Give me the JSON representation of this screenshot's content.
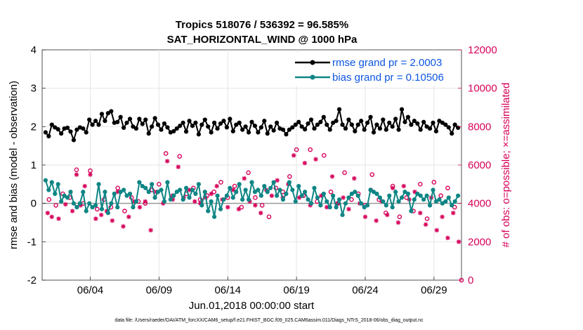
{
  "chart_data": {
    "type": "line",
    "title": "Tropics 518076 / 536392 = 96.585%",
    "subtitle": "SAT_HORIZONTAL_WIND @ 1000 hPa",
    "xlabel": "Jun.01,2018 00:00:00 start",
    "ylabel": "rmse and bias (model - observation)",
    "ylabel_right": "# of obs: o=possible; ×=assimilated",
    "footnote": "data file: /Users/raeder/DAI/ATM_forcXX/CAM6_setup/f.e21.FHIST_BGC.f09_025.CAM6assim.011/Diags_NTrS_2018-06/obs_diag_output.nc",
    "xlim": [
      0.5,
      31
    ],
    "ylim": [
      -2,
      4
    ],
    "ylim_right": [
      0,
      12000
    ],
    "x_ticks": [
      {
        "x": 4,
        "label": "06/04"
      },
      {
        "x": 9,
        "label": "06/09"
      },
      {
        "x": 14,
        "label": "06/14"
      },
      {
        "x": 19,
        "label": "06/19"
      },
      {
        "x": 24,
        "label": "06/24"
      },
      {
        "x": 29,
        "label": "06/29"
      }
    ],
    "y_ticks": [
      "-2",
      "-1",
      "0",
      "1",
      "2",
      "3",
      "4"
    ],
    "y_ticks_right": [
      "0",
      "2000",
      "4000",
      "6000",
      "8000",
      "10000",
      "12000"
    ],
    "zero_line": 0,
    "legend": [
      {
        "name": "rmse grand pr = 2.0003",
        "color": "#000000"
      },
      {
        "name": "bias grand pr = 0.10506",
        "color": "#0e8585"
      }
    ],
    "series": [
      {
        "name": "rmse",
        "color": "#000000",
        "values": [
          1.85,
          1.75,
          2.05,
          1.98,
          1.93,
          1.82,
          1.95,
          1.97,
          1.87,
          1.65,
          1.92,
          1.98,
          1.95,
          1.85,
          2.18,
          2.05,
          2.15,
          2.05,
          2.33,
          2.15,
          2.35,
          2.4,
          2.1,
          2.12,
          2.25,
          1.97,
          2.1,
          2.2,
          2.0,
          1.95,
          2.2,
          2.07,
          2.18,
          1.82,
          2.0,
          2.22,
          2.05,
          1.92,
          2.08,
          1.98,
          1.85,
          1.88,
          1.95,
          2.02,
          2.1,
          1.87,
          2.15,
          2.02,
          2.1,
          1.8,
          2.05,
          2.18,
          2.0,
          1.85,
          2.1,
          1.95,
          2.08,
          2.15,
          1.98,
          2.2,
          1.88,
          2.05,
          2.1,
          1.92,
          2.0,
          1.85,
          2.12,
          2.02,
          1.85,
          1.98,
          2.15,
          1.82,
          2.0,
          1.9,
          2.1,
          1.95,
          1.92,
          1.8,
          1.92,
          1.98,
          2.05,
          2.12,
          2.0,
          1.93,
          2.08,
          2.18,
          1.95,
          2.05,
          2.12,
          2.25,
          2.05,
          1.92,
          2.1,
          2.15,
          2.45,
          2.05,
          1.95,
          2.18,
          2.05,
          1.88,
          2.05,
          2.15,
          1.92,
          2.1,
          2.25,
          1.85,
          2.05,
          1.95,
          2.18,
          1.92,
          2.1,
          2.0,
          2.2,
          1.92,
          2.45,
          2.12,
          2.25,
          2.05,
          2.15,
          2.08,
          1.92,
          2.12,
          2.0,
          1.95,
          2.1,
          1.88,
          2.15,
          2.1,
          2.05,
          1.98,
          1.82,
          2.05,
          1.97
        ]
      },
      {
        "name": "bias",
        "color": "#0e8585",
        "values": [
          0.6,
          0.35,
          0.55,
          0.25,
          0.5,
          0.05,
          0.2,
          0.15,
          0.3,
          0.0,
          -0.1,
          0.0,
          0.3,
          -0.2,
          0.0,
          -0.1,
          -0.05,
          0.5,
          -0.15,
          0.3,
          -0.25,
          0.0,
          0.25,
          -0.1,
          0.3,
          0.35,
          0.2,
          0.25,
          -0.1,
          0.05,
          0.55,
          0.45,
          0.4,
          0.3,
          0.5,
          0.15,
          0.3,
          0.35,
          0.05,
          0.55,
          0.1,
          0.2,
          0.3,
          0.35,
          0.1,
          0.4,
          0.15,
          0.35,
          0.25,
          0.5,
          -0.05,
          0.3,
          -0.2,
          0.05,
          -0.35,
          0.2,
          -0.15,
          0.1,
          0.2,
          0.4,
          0.15,
          0.3,
          0.5,
          0.1,
          0.35,
          0.1,
          0.55,
          0.3,
          0.35,
          0.2,
          0.45,
          0.3,
          0.4,
          0.55,
          0.2,
          0.35,
          0.1,
          0.25,
          0.55,
          0.35,
          0.05,
          0.45,
          0.2,
          0.3,
          0.1,
          0.0,
          0.4,
          0.15,
          -0.05,
          0.25,
          0.05,
          -0.1,
          0.2,
          -0.1,
          0.1,
          -0.3,
          0.0,
          0.15,
          0.25,
          0.3,
          0.2,
          0.0,
          -0.1,
          -0.05,
          0.35,
          0.3,
          0.25,
          0.15,
          0.05,
          -0.05,
          0.2,
          -0.1,
          0.3,
          0.05,
          0.15,
          0.3,
          0.25,
          -0.2,
          0.1,
          0.25,
          0.2,
          0.1,
          0.2,
          -0.05,
          0.35,
          0.05,
          0.1,
          0.0,
          0.05,
          0.15,
          -0.05,
          0.05,
          0.2
        ]
      }
    ],
    "obs_possible": [
      {
        "x": 1.0,
        "y": 4200
      },
      {
        "x": 1.5,
        "y": 3900
      },
      {
        "x": 2.0,
        "y": 4500
      },
      {
        "x": 2.5,
        "y": 4300
      },
      {
        "x": 3.0,
        "y": 5750
      },
      {
        "x": 3.5,
        "y": 4000
      },
      {
        "x": 4.0,
        "y": 5700
      },
      {
        "x": 4.5,
        "y": 3700
      },
      {
        "x": 5.0,
        "y": 4200
      },
      {
        "x": 5.5,
        "y": 3800
      },
      {
        "x": 6.0,
        "y": 4800
      },
      {
        "x": 6.5,
        "y": 3600
      },
      {
        "x": 7.0,
        "y": 4300
      },
      {
        "x": 7.5,
        "y": 4100
      },
      {
        "x": 8.0,
        "y": 4000
      },
      {
        "x": 8.5,
        "y": 4700
      },
      {
        "x": 9.0,
        "y": 5000
      },
      {
        "x": 9.5,
        "y": 6600
      },
      {
        "x": 10.0,
        "y": 4400
      },
      {
        "x": 10.5,
        "y": 6450
      },
      {
        "x": 11.0,
        "y": 4500
      },
      {
        "x": 11.5,
        "y": 4800
      },
      {
        "x": 12.0,
        "y": 4200
      },
      {
        "x": 12.5,
        "y": 4400
      },
      {
        "x": 13.0,
        "y": 4600
      },
      {
        "x": 13.5,
        "y": 5100
      },
      {
        "x": 14.0,
        "y": 4300
      },
      {
        "x": 14.5,
        "y": 4900
      },
      {
        "x": 15.0,
        "y": 3800
      },
      {
        "x": 15.5,
        "y": 5600
      },
      {
        "x": 16.0,
        "y": 4300
      },
      {
        "x": 16.5,
        "y": 3900
      },
      {
        "x": 17.0,
        "y": 3300
      },
      {
        "x": 17.5,
        "y": 4800
      },
      {
        "x": 18.0,
        "y": 4600
      },
      {
        "x": 18.5,
        "y": 5400
      },
      {
        "x": 19.0,
        "y": 6800
      },
      {
        "x": 19.5,
        "y": 4400
      },
      {
        "x": 20.0,
        "y": 6800
      },
      {
        "x": 20.5,
        "y": 4100
      },
      {
        "x": 21.0,
        "y": 6500
      },
      {
        "x": 21.5,
        "y": 4600
      },
      {
        "x": 22.0,
        "y": 4000
      },
      {
        "x": 22.5,
        "y": 5600
      },
      {
        "x": 23.0,
        "y": 4200
      },
      {
        "x": 23.5,
        "y": 4500
      },
      {
        "x": 24.0,
        "y": 3900
      },
      {
        "x": 24.5,
        "y": 5500
      },
      {
        "x": 25.0,
        "y": 4200
      },
      {
        "x": 25.5,
        "y": 3500
      },
      {
        "x": 26.0,
        "y": 4900
      },
      {
        "x": 26.5,
        "y": 3300
      },
      {
        "x": 27.0,
        "y": 4300
      },
      {
        "x": 27.5,
        "y": 3600
      },
      {
        "x": 28.0,
        "y": 5000
      },
      {
        "x": 28.5,
        "y": 3200
      },
      {
        "x": 29.0,
        "y": 5100
      },
      {
        "x": 29.5,
        "y": 4400
      },
      {
        "x": 30.0,
        "y": 4800
      },
      {
        "x": 30.5,
        "y": 3800
      },
      {
        "x": 31.0,
        "y": 0
      }
    ],
    "obs_assimilated": [
      {
        "x": 0.9,
        "y": 3500
      },
      {
        "x": 1.2,
        "y": 3300
      },
      {
        "x": 1.7,
        "y": 3200
      },
      {
        "x": 2.2,
        "y": 3950
      },
      {
        "x": 2.7,
        "y": 3600
      },
      {
        "x": 3.0,
        "y": 5500
      },
      {
        "x": 3.3,
        "y": 3900
      },
      {
        "x": 3.6,
        "y": 4900
      },
      {
        "x": 4.0,
        "y": 5500
      },
      {
        "x": 4.4,
        "y": 3200
      },
      {
        "x": 4.8,
        "y": 3400
      },
      {
        "x": 5.2,
        "y": 3600
      },
      {
        "x": 5.6,
        "y": 3100
      },
      {
        "x": 6.0,
        "y": 4600
      },
      {
        "x": 6.4,
        "y": 2800
      },
      {
        "x": 6.8,
        "y": 3300
      },
      {
        "x": 7.2,
        "y": 4100
      },
      {
        "x": 7.6,
        "y": 3800
      },
      {
        "x": 8.0,
        "y": 4100
      },
      {
        "x": 8.4,
        "y": 2600
      },
      {
        "x": 8.8,
        "y": 4600
      },
      {
        "x": 9.3,
        "y": 4000
      },
      {
        "x": 9.6,
        "y": 6200
      },
      {
        "x": 10.0,
        "y": 4200
      },
      {
        "x": 10.4,
        "y": 5900
      },
      {
        "x": 10.8,
        "y": 4300
      },
      {
        "x": 11.2,
        "y": 4700
      },
      {
        "x": 11.6,
        "y": 4100
      },
      {
        "x": 12.0,
        "y": 4000
      },
      {
        "x": 12.4,
        "y": 4300
      },
      {
        "x": 12.8,
        "y": 4500
      },
      {
        "x": 13.2,
        "y": 4900
      },
      {
        "x": 13.6,
        "y": 4200
      },
      {
        "x": 14.0,
        "y": 3800
      },
      {
        "x": 14.4,
        "y": 4700
      },
      {
        "x": 14.8,
        "y": 3700
      },
      {
        "x": 15.2,
        "y": 5300
      },
      {
        "x": 15.6,
        "y": 4100
      },
      {
        "x": 16.0,
        "y": 3900
      },
      {
        "x": 16.4,
        "y": 3500
      },
      {
        "x": 16.8,
        "y": 4700
      },
      {
        "x": 17.2,
        "y": 4400
      },
      {
        "x": 17.6,
        "y": 5200
      },
      {
        "x": 18.0,
        "y": 4300
      },
      {
        "x": 18.4,
        "y": 5000
      },
      {
        "x": 18.8,
        "y": 6500
      },
      {
        "x": 19.2,
        "y": 4300
      },
      {
        "x": 19.6,
        "y": 6100
      },
      {
        "x": 20.0,
        "y": 3900
      },
      {
        "x": 20.4,
        "y": 6300
      },
      {
        "x": 20.8,
        "y": 4400
      },
      {
        "x": 21.2,
        "y": 3800
      },
      {
        "x": 21.6,
        "y": 5400
      },
      {
        "x": 22.0,
        "y": 4000
      },
      {
        "x": 22.4,
        "y": 4300
      },
      {
        "x": 22.8,
        "y": 3700
      },
      {
        "x": 23.2,
        "y": 5300
      },
      {
        "x": 23.6,
        "y": 4000
      },
      {
        "x": 24.0,
        "y": 3300
      },
      {
        "x": 24.4,
        "y": 4700
      },
      {
        "x": 24.8,
        "y": 3100
      },
      {
        "x": 25.2,
        "y": 4100
      },
      {
        "x": 25.6,
        "y": 3400
      },
      {
        "x": 26.0,
        "y": 4800
      },
      {
        "x": 26.4,
        "y": 3000
      },
      {
        "x": 26.8,
        "y": 4900
      },
      {
        "x": 27.2,
        "y": 4200
      },
      {
        "x": 27.6,
        "y": 4600
      },
      {
        "x": 28.0,
        "y": 3500
      },
      {
        "x": 28.4,
        "y": 2900
      },
      {
        "x": 28.8,
        "y": 4300
      },
      {
        "x": 29.2,
        "y": 2600
      },
      {
        "x": 29.6,
        "y": 3300
      },
      {
        "x": 30.0,
        "y": 2200
      },
      {
        "x": 30.4,
        "y": 3500
      },
      {
        "x": 30.8,
        "y": 2000
      }
    ]
  }
}
